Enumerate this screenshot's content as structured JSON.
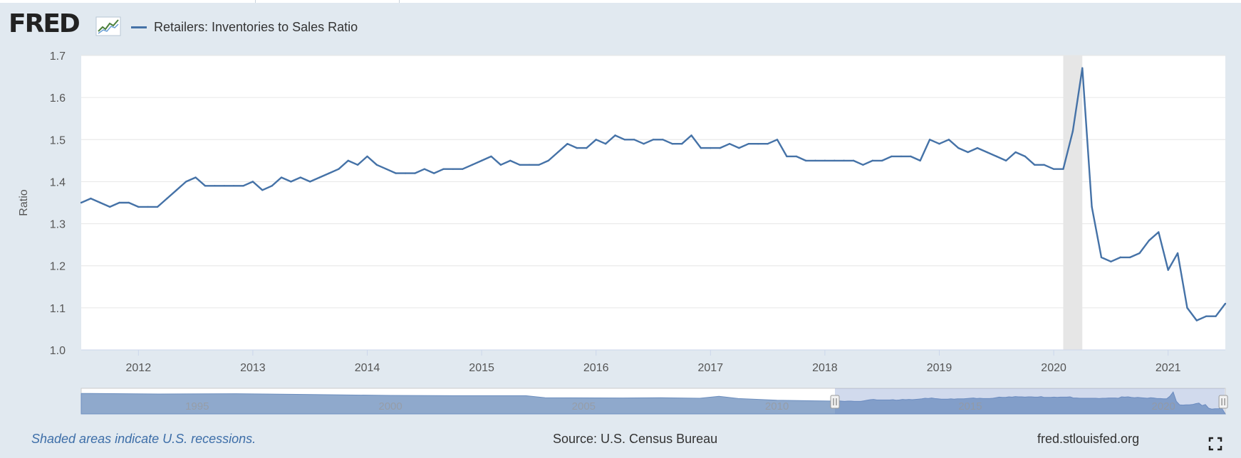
{
  "header": {
    "logo_text": "FRED",
    "series_label": "Retailers: Inventories to Sales Ratio",
    "series_color": "#4572a7"
  },
  "footer": {
    "recession_note": "Shaded areas indicate U.S. recessions.",
    "source": "Source: U.S. Census Bureau",
    "site": "fred.stlouisfed.org"
  },
  "icons": {
    "logo": "fred-chart-logo-icon",
    "fullscreen": "fullscreen-icon"
  },
  "chart_data": {
    "type": "line",
    "title": "",
    "xlabel": "",
    "ylabel": "Ratio",
    "ylim": [
      1.0,
      1.7
    ],
    "yticks": [
      "1.0",
      "1.1",
      "1.2",
      "1.3",
      "1.4",
      "1.5",
      "1.6",
      "1.7"
    ],
    "xticks": [
      "2012",
      "2013",
      "2014",
      "2015",
      "2016",
      "2017",
      "2018",
      "2019",
      "2020",
      "2021"
    ],
    "grid": true,
    "legend": "top-left",
    "recession_shading": [
      {
        "start": "2020-02",
        "end": "2020-04"
      }
    ],
    "series": [
      {
        "name": "Retailers: Inventories to Sales Ratio",
        "color": "#4572a7",
        "x": [
          "2011-07",
          "2011-08",
          "2011-09",
          "2011-10",
          "2011-11",
          "2011-12",
          "2012-01",
          "2012-02",
          "2012-03",
          "2012-04",
          "2012-05",
          "2012-06",
          "2012-07",
          "2012-08",
          "2012-09",
          "2012-10",
          "2012-11",
          "2012-12",
          "2013-01",
          "2013-02",
          "2013-03",
          "2013-04",
          "2013-05",
          "2013-06",
          "2013-07",
          "2013-08",
          "2013-09",
          "2013-10",
          "2013-11",
          "2013-12",
          "2014-01",
          "2014-02",
          "2014-03",
          "2014-04",
          "2014-05",
          "2014-06",
          "2014-07",
          "2014-08",
          "2014-09",
          "2014-10",
          "2014-11",
          "2014-12",
          "2015-01",
          "2015-02",
          "2015-03",
          "2015-04",
          "2015-05",
          "2015-06",
          "2015-07",
          "2015-08",
          "2015-09",
          "2015-10",
          "2015-11",
          "2015-12",
          "2016-01",
          "2016-02",
          "2016-03",
          "2016-04",
          "2016-05",
          "2016-06",
          "2016-07",
          "2016-08",
          "2016-09",
          "2016-10",
          "2016-11",
          "2016-12",
          "2017-01",
          "2017-02",
          "2017-03",
          "2017-04",
          "2017-05",
          "2017-06",
          "2017-07",
          "2017-08",
          "2017-09",
          "2017-10",
          "2017-11",
          "2017-12",
          "2018-01",
          "2018-02",
          "2018-03",
          "2018-04",
          "2018-05",
          "2018-06",
          "2018-07",
          "2018-08",
          "2018-09",
          "2018-10",
          "2018-11",
          "2018-12",
          "2019-01",
          "2019-02",
          "2019-03",
          "2019-04",
          "2019-05",
          "2019-06",
          "2019-07",
          "2019-08",
          "2019-09",
          "2019-10",
          "2019-11",
          "2019-12",
          "2020-01",
          "2020-02",
          "2020-03",
          "2020-04",
          "2020-05",
          "2020-06",
          "2020-07",
          "2020-08",
          "2020-09",
          "2020-10",
          "2020-11",
          "2020-12",
          "2021-01",
          "2021-02",
          "2021-03",
          "2021-04",
          "2021-05",
          "2021-06",
          "2021-07"
        ],
        "values": [
          1.35,
          1.36,
          1.35,
          1.34,
          1.35,
          1.35,
          1.34,
          1.34,
          1.34,
          1.36,
          1.38,
          1.4,
          1.41,
          1.39,
          1.39,
          1.39,
          1.39,
          1.39,
          1.4,
          1.38,
          1.39,
          1.41,
          1.4,
          1.41,
          1.4,
          1.41,
          1.42,
          1.43,
          1.45,
          1.44,
          1.46,
          1.44,
          1.43,
          1.42,
          1.42,
          1.42,
          1.43,
          1.42,
          1.43,
          1.43,
          1.43,
          1.44,
          1.45,
          1.46,
          1.44,
          1.45,
          1.44,
          1.44,
          1.44,
          1.45,
          1.47,
          1.49,
          1.48,
          1.48,
          1.5,
          1.49,
          1.51,
          1.5,
          1.5,
          1.49,
          1.5,
          1.5,
          1.49,
          1.49,
          1.51,
          1.48,
          1.48,
          1.48,
          1.49,
          1.48,
          1.49,
          1.49,
          1.49,
          1.5,
          1.46,
          1.46,
          1.45,
          1.45,
          1.45,
          1.45,
          1.45,
          1.45,
          1.44,
          1.45,
          1.45,
          1.46,
          1.46,
          1.46,
          1.45,
          1.5,
          1.49,
          1.5,
          1.48,
          1.47,
          1.48,
          1.47,
          1.46,
          1.45,
          1.47,
          1.46,
          1.44,
          1.44,
          1.43,
          1.43,
          1.52,
          1.67,
          1.34,
          1.22,
          1.21,
          1.22,
          1.22,
          1.23,
          1.26,
          1.28,
          1.19,
          1.23,
          1.1,
          1.07,
          1.08,
          1.08,
          1.11
        ]
      }
    ],
    "navigator": {
      "labels": [
        "1995",
        "2000",
        "2005",
        "2010",
        "2015",
        "2020"
      ],
      "selection": [
        "2011-07",
        "2021-07"
      ]
    }
  }
}
